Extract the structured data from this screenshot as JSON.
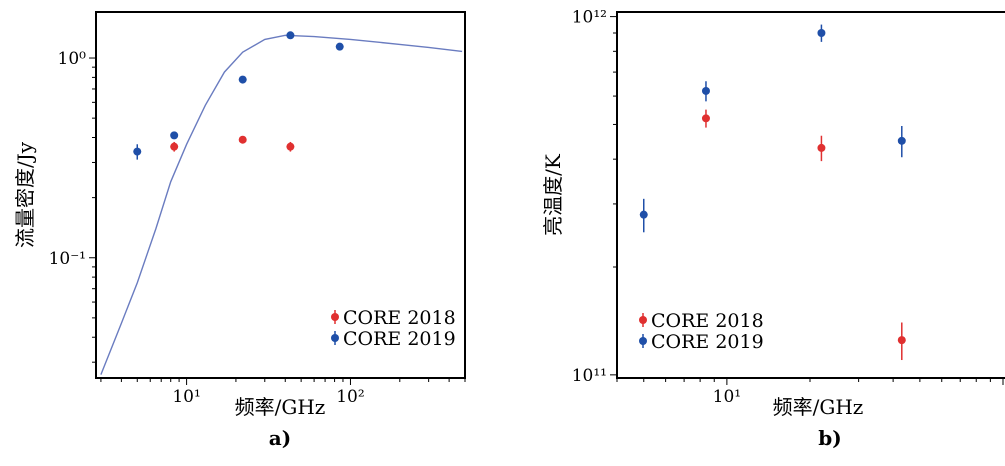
{
  "chart_data": [
    {
      "type": "scatter",
      "title": "",
      "panel_label": "a)",
      "xlabel": "频率/GHz",
      "ylabel": "流量密度/Jy",
      "x_scale": "log",
      "y_scale": "log",
      "xlim": [
        2.8,
        500
      ],
      "ylim": [
        0.025,
        1.7
      ],
      "x_ticks": [
        {
          "value": 10,
          "label": "10¹"
        },
        {
          "value": 100,
          "label": "10²"
        }
      ],
      "y_ticks": [
        {
          "value": 1,
          "label": "10⁰"
        },
        {
          "value": 0.1,
          "label": "10⁻¹"
        }
      ],
      "legend_position": "lower-right",
      "series": [
        {
          "name": "CORE 2018",
          "color": "#e03030",
          "points": [
            {
              "x": 8.4,
              "y": 0.36,
              "err": 0.02
            },
            {
              "x": 22,
              "y": 0.39,
              "err": 0.015
            },
            {
              "x": 43,
              "y": 0.36,
              "err": 0.02
            }
          ]
        },
        {
          "name": "CORE 2019",
          "color": "#1f4fa8",
          "points": [
            {
              "x": 5,
              "y": 0.34,
              "err": 0.03
            },
            {
              "x": 8.4,
              "y": 0.41,
              "err": 0.01
            },
            {
              "x": 22,
              "y": 0.78,
              "err": 0.02
            },
            {
              "x": 43,
              "y": 1.3,
              "err": 0.03
            },
            {
              "x": 86,
              "y": 1.14,
              "err": 0.03
            }
          ]
        }
      ],
      "fit_curve": {
        "color": "#6a7cc0",
        "points": [
          {
            "x": 3,
            "y": 0.026
          },
          {
            "x": 4,
            "y": 0.047
          },
          {
            "x": 5,
            "y": 0.075
          },
          {
            "x": 6.5,
            "y": 0.14
          },
          {
            "x": 8,
            "y": 0.24
          },
          {
            "x": 10,
            "y": 0.37
          },
          {
            "x": 13,
            "y": 0.58
          },
          {
            "x": 17,
            "y": 0.85
          },
          {
            "x": 22,
            "y": 1.07
          },
          {
            "x": 30,
            "y": 1.24
          },
          {
            "x": 40,
            "y": 1.3
          },
          {
            "x": 60,
            "y": 1.28
          },
          {
            "x": 100,
            "y": 1.24
          },
          {
            "x": 200,
            "y": 1.17
          },
          {
            "x": 300,
            "y": 1.13
          },
          {
            "x": 480,
            "y": 1.08
          }
        ]
      }
    },
    {
      "type": "scatter",
      "title": "",
      "panel_label": "b)",
      "xlabel": "频率/GHz",
      "ylabel": "亮温度/K",
      "x_scale": "log",
      "y_scale": "log",
      "xlim": [
        4,
        100
      ],
      "ylim": [
        98000000000.0,
        1030000000000.0
      ],
      "x_ticks": [
        {
          "value": 10,
          "label": "10¹"
        }
      ],
      "y_ticks": [
        {
          "value": 1000000000000.0,
          "label": "10¹²"
        },
        {
          "value": 100000000000.0,
          "label": "10¹¹"
        }
      ],
      "legend_position": "lower-left",
      "series": [
        {
          "name": "CORE 2018",
          "color": "#e03030",
          "points": [
            {
              "x": 8.4,
              "y": 520000000000.0,
              "err": 30000000000.0
            },
            {
              "x": 22,
              "y": 430000000000.0,
              "err": 35000000000.0
            },
            {
              "x": 43,
              "y": 125000000000.0,
              "err": 15000000000.0
            }
          ]
        },
        {
          "name": "CORE 2019",
          "color": "#1f4fa8",
          "points": [
            {
              "x": 5,
              "y": 280000000000.0,
              "err": 30000000000.0
            },
            {
              "x": 8.4,
              "y": 620000000000.0,
              "err": 40000000000.0
            },
            {
              "x": 22,
              "y": 900000000000.0,
              "err": 50000000000.0
            },
            {
              "x": 43,
              "y": 450000000000.0,
              "err": 45000000000.0
            }
          ]
        }
      ]
    }
  ]
}
